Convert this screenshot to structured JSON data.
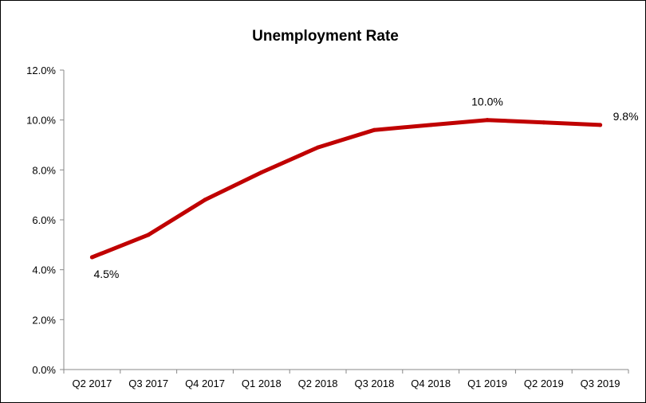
{
  "chart_data": {
    "type": "line",
    "title": "Unemployment Rate",
    "xlabel": "",
    "ylabel": "",
    "categories": [
      "Q2 2017",
      "Q3 2017",
      "Q4 2017",
      "Q1 2018",
      "Q2 2018",
      "Q3 2018",
      "Q4 2018",
      "Q1 2019",
      "Q2 2019",
      "Q3 2019"
    ],
    "series": [
      {
        "name": "",
        "values": [
          4.5,
          5.4,
          6.8,
          7.9,
          8.9,
          9.6,
          9.8,
          10.0,
          9.9,
          9.8
        ],
        "color": "#c00000"
      }
    ],
    "data_labels": [
      {
        "index": 0,
        "text": "4.5%"
      },
      {
        "index": 7,
        "text": "10.0%"
      },
      {
        "index": 9,
        "text": "9.8%"
      }
    ],
    "yticks": [
      "0.0%",
      "2.0%",
      "4.0%",
      "6.0%",
      "8.0%",
      "10.0%",
      "12.0%"
    ],
    "ylim": [
      0,
      12
    ],
    "grid": false,
    "legend": "none"
  }
}
